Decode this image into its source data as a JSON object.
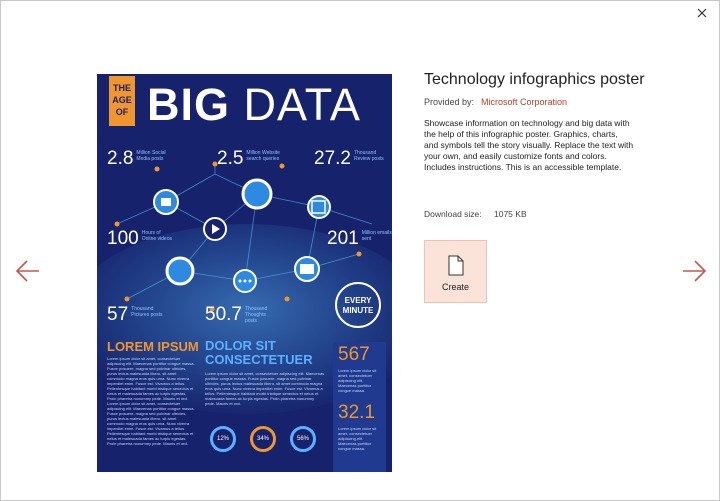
{
  "template": {
    "title": "Technology infographics poster",
    "provided_by_label": "Provided by:",
    "provider": "Microsoft Corporation",
    "description": "Showcase information on technology and big data with the help of this infographic poster. Graphics, charts, and symbols tell the story visually. Replace the text with your own, and easily customize fonts and colors. Includes instructions. This is an accessible template.",
    "download_label": "Download size:",
    "download_size": "1075 KB",
    "create_label": "Create"
  },
  "poster": {
    "age_line1": "THE",
    "age_line2": "AGE",
    "age_line3": "OF",
    "big": "BIG",
    "data": "DATA",
    "stats": {
      "s1": {
        "value": "2.8",
        "caption": "Million Social Media posts"
      },
      "s2": {
        "value": "2.5",
        "caption": "Million Website search queries"
      },
      "s3": {
        "value": "27.2",
        "caption": "Thousand Review posts"
      },
      "s4": {
        "value": "100",
        "caption": "Hours of Online videos"
      },
      "s5": {
        "value": "201",
        "caption": "Million emails sent"
      },
      "s6": {
        "value": "57",
        "caption": "Thousand Pictures posts"
      },
      "s7": {
        "value": "50.7",
        "caption": "Thousand Thoughts posts"
      }
    },
    "every_line1": "EVERY",
    "every_line2": "MINUTE",
    "lorem_heading": "LOREM IPSUM",
    "dolor_heading_1": "DOLOR SIT",
    "dolor_heading_2": "CONSECTETUER",
    "side_num_1": "567",
    "side_num_2": "32.1",
    "side_text_1": "Lorem ipsum dolor sit amet, consectetuer adipiscing elit. Maecenas porttitor congue massa.",
    "side_text_2": "Lorem ipsum dolor sit amet, consectetuer adipiscing elit. Maecenas porttitor congue massa.",
    "para_left": "Lorem ipsum dolor sit amet, consectetuer adipiscing elit. Maecenas porttitor congue massa. Fusce posuere, magna sed pulvinar ultricies, purus lectus malesuada libero, sit amet commodo magna eros quis urna. Nunc viverra imperdiet enim. Fusce est. Vivamus a tellus. Pellentesque habitant morbi tristique senectus et netus et malesuada fames ac turpis egestas. Proin pharetra nonummy pede. Mauris et orci. Lorem ipsum dolor sit amet, consectetuer adipiscing elit. Maecenas porttitor congue massa. Fusce posuere, magna sed pulvinar ultricies, purus lectus malesuada libero, sit amet commodo magna eros quis urna. Nunc viverra imperdiet enim. Fusce est. Vivamus a tellus. Pellentesque habitant morbi tristique senectus et netus et malesuada fames ac turpis egestas. Proin pharetra nonummy pede. Mauris et orci.",
    "para_mid": "Lorem ipsum dolor sit amet, consectetuer adipiscing elit. Maecenas porttitor congue massa. Fusce posuere, magna sed pulvinar ultricies, purus lectus malesuada libero, sit amet commodo magna eros quis urna. Nunc viverra imperdiet enim. Fusce est. Vivamus a tellus. Pellentesque habitant morbi tristique senectus et netus et malesuada fames ac turpis egestas. Proin pharetra nonummy pede. Mauris et orci.",
    "rings": [
      "12%",
      "34%",
      "56%"
    ]
  },
  "colors": {
    "poster_bg": "#16226b",
    "accent_orange": "#f0962d",
    "accent_blue": "#5bb0ff",
    "provider_link": "#b5412a",
    "create_bg": "#fbe3da"
  },
  "icons": {
    "close": "close-icon",
    "prev": "arrow-left-icon",
    "next": "arrow-right-icon",
    "create": "document-icon"
  }
}
